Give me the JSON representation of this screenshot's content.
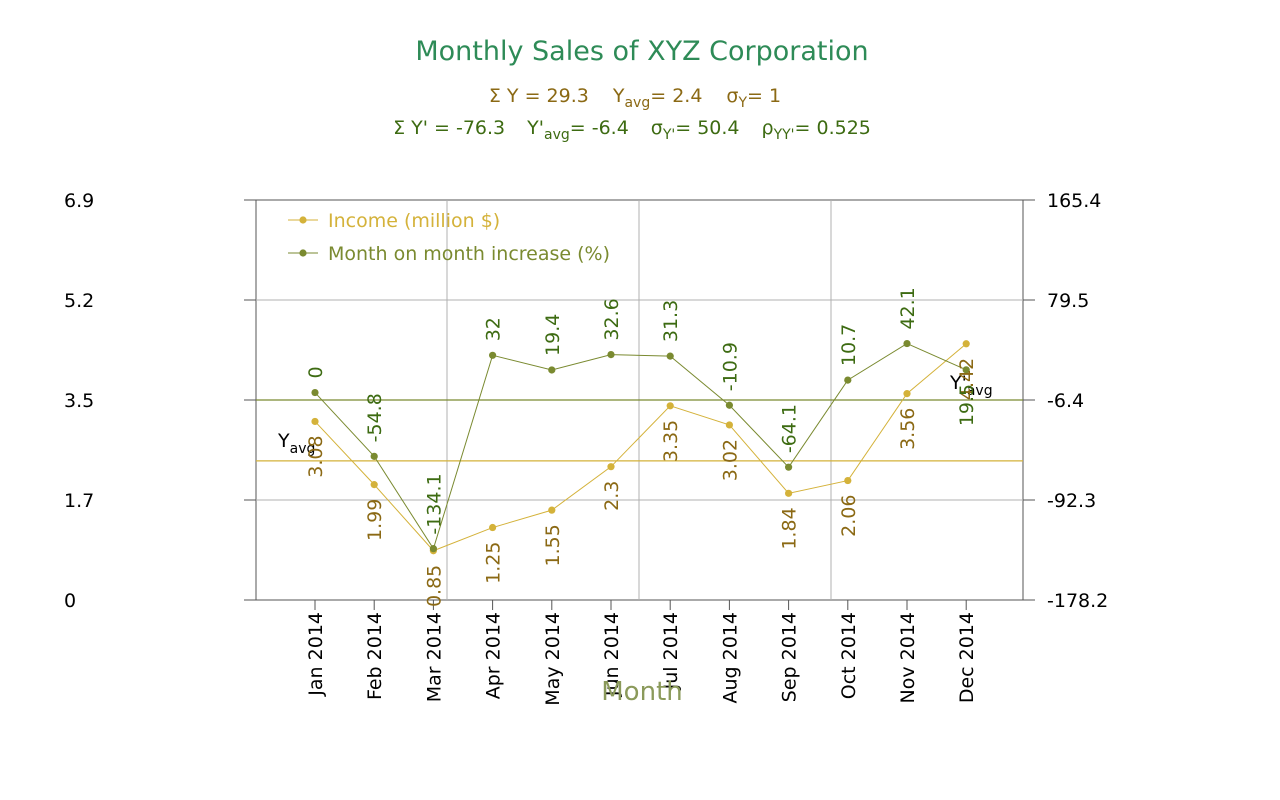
{
  "chart_data": {
    "type": "line",
    "title": "Monthly Sales of XYZ Corporation",
    "stats_line1": {
      "sum": "Σ Y = 29.3",
      "avg_base": "Y",
      "avg_sub": "avg",
      "avg_val": "= 2.4",
      "sigma_base": "σ",
      "sigma_sub": "Y",
      "sigma_val": "= 1"
    },
    "stats_line2": {
      "sum": "Σ Y' = -76.3",
      "avg_base": "Y'",
      "avg_sub": "avg",
      "avg_val": "= -6.4",
      "sigma_base": "σ",
      "sigma_sub": "Y'",
      "sigma_val": "= 50.4",
      "rho_base": "ρ",
      "rho_sub": "YY'",
      "rho_val": "= 0.525"
    },
    "xlabel": "Month",
    "categories": [
      "Jan 2014",
      "Feb 2014",
      "Mar 2014",
      "Apr 2014",
      "May 2014",
      "Jun 2014",
      "Jul 2014",
      "Aug 2014",
      "Sep 2014",
      "Oct 2014",
      "Nov 2014",
      "Dec 2014"
    ],
    "left_axis": {
      "ticks": [
        "6.9",
        "5.2",
        "3.5",
        "1.7",
        "0"
      ],
      "ylim": [
        0,
        6.9
      ]
    },
    "right_axis": {
      "ticks": [
        "165.4",
        "79.5",
        "-6.4",
        "-92.3",
        "-178.2"
      ],
      "ylim": [
        -178.2,
        165.4
      ]
    },
    "series": [
      {
        "name": "Income (million $)",
        "axis": "left",
        "color": "#d4b23a",
        "label_color": "#8b6914",
        "values": [
          3.08,
          1.99,
          0.85,
          1.25,
          1.55,
          2.3,
          3.35,
          3.02,
          1.84,
          2.06,
          3.56,
          4.42
        ],
        "labels": [
          "3.08",
          "1.99",
          "0.85",
          "1.25",
          "1.55",
          "2.3",
          "3.35",
          "3.02",
          "1.84",
          "2.06",
          "3.56",
          "4.42"
        ],
        "avg": 2.4,
        "avg_label_base": "Y",
        "avg_label_sub": "avg"
      },
      {
        "name": "Month on month increase (%)",
        "axis": "right",
        "color": "#7a8a30",
        "label_color": "#3d6b12",
        "values": [
          0,
          -54.8,
          -134.1,
          32,
          19.4,
          32.6,
          31.3,
          -10.9,
          -64.1,
          10.7,
          42.1,
          19.5
        ],
        "labels": [
          "0",
          "-54.8",
          "-134.1",
          "32",
          "19.4",
          "32.6",
          "31.3",
          "-10.9",
          "-64.1",
          "10.7",
          "42.1",
          "19.5"
        ],
        "avg": -6.4,
        "avg_label_base": "Y'",
        "avg_label_sub": "avg"
      }
    ],
    "grid": true,
    "legend": "top-left"
  }
}
